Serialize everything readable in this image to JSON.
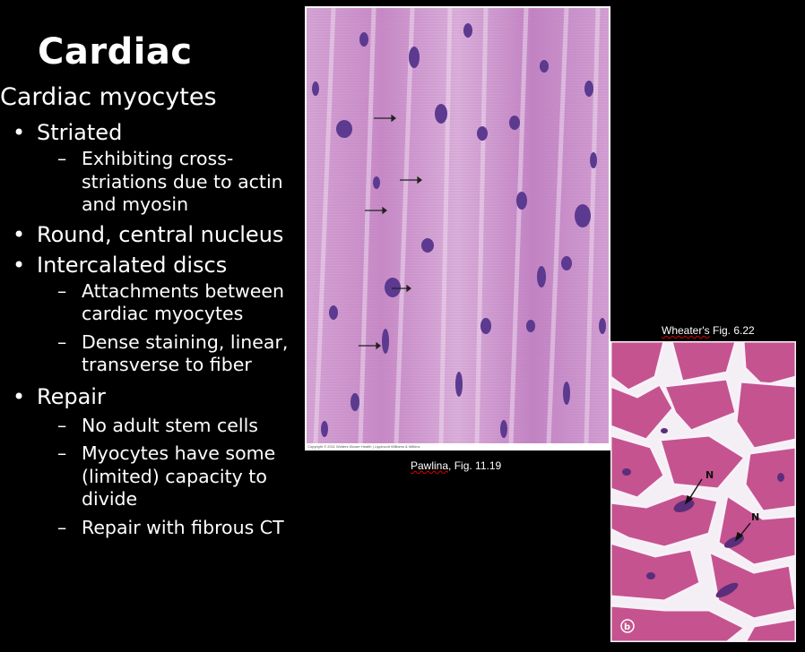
{
  "slide": {
    "title": "Cardiac",
    "heading": "Cardiac myocytes",
    "bullets": {
      "striated": "Striated",
      "striated_sub1": "Exhibiting cross-striations due to actin and myosin",
      "nucleus": "Round, central nucleus",
      "discs": "Intercalated discs",
      "discs_sub1": "Attachments between cardiac myocytes",
      "discs_sub2": "Dense staining, linear, transverse to fiber",
      "repair": "Repair",
      "repair_sub1": "No adult stem cells",
      "repair_sub2": "Myocytes have some (limited) capacity to divide",
      "repair_sub3": "Repair with fibrous CT"
    }
  },
  "figures": {
    "fig1_caption_name": "Pawlina",
    "fig1_caption_rest": ", Fig. 11.19",
    "fig2_caption_name": "Wheater's",
    "fig2_caption_rest": " Fig. 6.22",
    "fig2_label_n1": "N",
    "fig2_label_n2": "N",
    "fig2_panel": "b",
    "fig1_credit": "Copyright © 2011 Wolters Kluwer Health | Lippincott Williams & Wilkins"
  },
  "colors": {
    "background": "#000000",
    "text": "#ffffff",
    "tissue_pink": "#c98cc8",
    "nucleus_purple": "#5a3a8c"
  }
}
